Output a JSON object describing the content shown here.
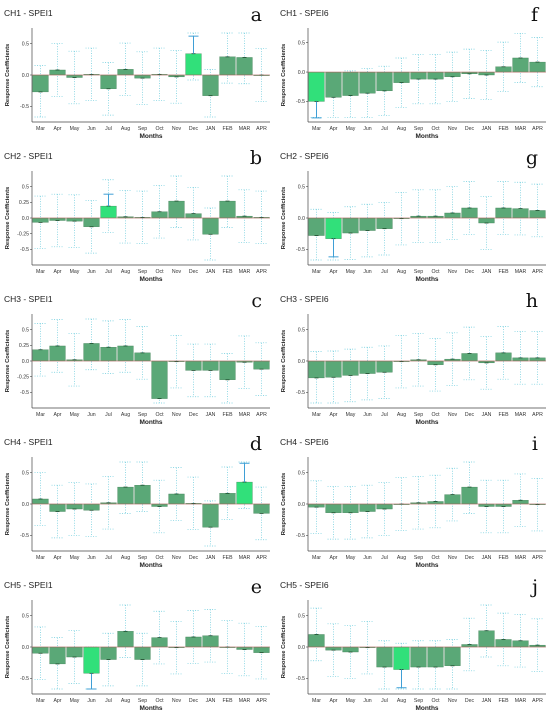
{
  "chart_data": [
    {
      "type": "bar",
      "title": "CH1 - SPEI1",
      "letter": "a",
      "xlabel": "Months",
      "ylabel": "Response Coefficients",
      "categories": [
        "Mar",
        "Apr",
        "May",
        "Jun",
        "Jul",
        "Aug",
        "Sep",
        "Oct",
        "Nov",
        "Dec",
        "JAN",
        "FEB",
        "MAR",
        "APR"
      ],
      "yticks": [
        "0.5",
        "0.0",
        "-0.5"
      ],
      "ylim": [
        -0.75,
        0.75
      ],
      "values": [
        -0.27,
        0.08,
        -0.04,
        0.01,
        -0.22,
        0.09,
        -0.05,
        0.01,
        -0.03,
        0.34,
        -0.33,
        0.29,
        0.28,
        0.0
      ],
      "significant": [
        9
      ],
      "sig_upper": [
        0.62
      ]
    },
    {
      "type": "bar",
      "title": "CH2 - SPEI1",
      "letter": "b",
      "xlabel": "Months",
      "ylabel": "Response Coefficients",
      "categories": [
        "Mar",
        "Apr",
        "May",
        "Jun",
        "Jul",
        "Aug",
        "Sep",
        "Oct",
        "Nov",
        "Dec",
        "JAN",
        "FEB",
        "MAR",
        "APR"
      ],
      "yticks": [
        "0.5",
        "0.25",
        "0.0",
        "-0.25",
        "-0.5"
      ],
      "ylim": [
        -0.75,
        0.75
      ],
      "values": [
        -0.07,
        -0.04,
        -0.05,
        -0.14,
        0.19,
        0.02,
        0.01,
        0.1,
        0.27,
        0.07,
        -0.26,
        0.27,
        0.03,
        0.01
      ],
      "significant": [
        4
      ],
      "sig_upper": [
        0.38
      ]
    },
    {
      "type": "bar",
      "title": "CH3 - SPEI1",
      "letter": "c",
      "xlabel": "Months",
      "ylabel": "Response Coefficients",
      "categories": [
        "Mar",
        "Apr",
        "May",
        "Jun",
        "Jul",
        "Aug",
        "Sep",
        "Oct",
        "Nov",
        "Dec",
        "JAN",
        "FEB",
        "MAR",
        "APR"
      ],
      "yticks": [
        "0.5",
        "0.25",
        "0.0",
        "-0.25",
        "-0.5"
      ],
      "ylim": [
        -0.75,
        0.75
      ],
      "values": [
        0.18,
        0.24,
        0.02,
        0.28,
        0.22,
        0.24,
        0.13,
        -0.6,
        -0.01,
        -0.15,
        -0.15,
        -0.3,
        -0.02,
        -0.13
      ],
      "significant": [],
      "sig_upper": []
    },
    {
      "type": "bar",
      "title": "CH4 - SPEI1",
      "letter": "d",
      "xlabel": "Months",
      "ylabel": "Response Coefficients",
      "categories": [
        "Mar",
        "Apr",
        "May",
        "Jun",
        "Jul",
        "Aug",
        "Sep",
        "Oct",
        "Nov",
        "Dec",
        "JAN",
        "FEB",
        "MAR",
        "APR"
      ],
      "yticks": [
        "0.5",
        "0.0",
        "-0.5"
      ],
      "ylim": [
        -0.75,
        0.75
      ],
      "values": [
        0.08,
        -0.12,
        -0.08,
        -0.1,
        0.02,
        0.27,
        0.3,
        -0.04,
        0.16,
        0.01,
        -0.37,
        0.17,
        0.35,
        -0.15
      ],
      "significant": [
        12
      ],
      "sig_upper": [
        0.65
      ]
    },
    {
      "type": "bar",
      "title": "CH5 - SPEI1",
      "letter": "e",
      "xlabel": "Months",
      "ylabel": "Response Coefficients",
      "categories": [
        "Mar",
        "Apr",
        "May",
        "Jun",
        "Jul",
        "Aug",
        "Sep",
        "Oct",
        "Nov",
        "Dec",
        "JAN",
        "FEB",
        "MAR",
        "APR"
      ],
      "yticks": [
        "0.5",
        "0.0",
        "-0.5"
      ],
      "ylim": [
        -0.75,
        0.75
      ],
      "values": [
        -0.1,
        -0.27,
        -0.16,
        -0.42,
        -0.2,
        0.25,
        -0.2,
        0.15,
        -0.01,
        0.16,
        0.18,
        0.0,
        -0.04,
        -0.09
      ],
      "significant": [
        3
      ],
      "sig_lower": [
        -0.67
      ]
    },
    {
      "type": "bar",
      "title": "CH1 - SPEI6",
      "letter": "f",
      "xlabel": "Months",
      "ylabel": "Response Coefficients",
      "categories": [
        "Mar",
        "Apr",
        "May",
        "Jun",
        "Jul",
        "Aug",
        "Sep",
        "Oct",
        "Nov",
        "Dec",
        "JAN",
        "FEB",
        "MAR",
        "APR"
      ],
      "yticks": [
        "0.5",
        "0.0",
        "-0.5"
      ],
      "ylim": [
        -0.85,
        0.75
      ],
      "values": [
        -0.5,
        -0.43,
        -0.4,
        -0.36,
        -0.32,
        -0.18,
        -0.12,
        -0.12,
        -0.08,
        -0.03,
        -0.05,
        0.09,
        0.24,
        0.17
      ],
      "significant": [
        0
      ],
      "sig_lower": [
        -0.78
      ]
    },
    {
      "type": "bar",
      "title": "CH2 - SPEI6",
      "letter": "g",
      "xlabel": "Months",
      "ylabel": "Response Coefficients",
      "categories": [
        "Mar",
        "Apr",
        "May",
        "Jun",
        "Jul",
        "Aug",
        "Sep",
        "Oct",
        "Nov",
        "Dec",
        "JAN",
        "FEB",
        "MAR",
        "APR"
      ],
      "yticks": [
        "0.5",
        "0.0",
        "-0.5"
      ],
      "ylim": [
        -0.75,
        0.75
      ],
      "values": [
        -0.28,
        -0.33,
        -0.24,
        -0.2,
        -0.17,
        -0.01,
        0.03,
        0.03,
        0.08,
        0.16,
        -0.08,
        0.16,
        0.15,
        0.12
      ],
      "significant": [
        1
      ],
      "sig_lower": [
        -0.62
      ]
    },
    {
      "type": "bar",
      "title": "CH3 - SPEI6",
      "letter": "h",
      "xlabel": "Months",
      "ylabel": "Response Coefficients",
      "categories": [
        "Mar",
        "Apr",
        "May",
        "Jun",
        "Jul",
        "Aug",
        "Sep",
        "Oct",
        "Nov",
        "Dec",
        "JAN",
        "FEB",
        "MAR",
        "APR"
      ],
      "yticks": [
        "0.5",
        "0.0",
        "-0.5"
      ],
      "ylim": [
        -0.75,
        0.75
      ],
      "values": [
        -0.27,
        -0.26,
        -0.23,
        -0.2,
        -0.18,
        -0.01,
        0.02,
        -0.06,
        0.03,
        0.12,
        -0.03,
        0.13,
        0.05,
        0.05
      ],
      "significant": [],
      "sig_upper": []
    },
    {
      "type": "bar",
      "title": "CH4 - SPEI6",
      "letter": "i",
      "xlabel": "Months",
      "ylabel": "Response Coefficients",
      "categories": [
        "Mar",
        "Apr",
        "May",
        "Jun",
        "Jul",
        "Aug",
        "Sep",
        "Oct",
        "Nov",
        "Dec",
        "JAN",
        "FEB",
        "MAR",
        "APR"
      ],
      "yticks": [
        "0.5",
        "0.0",
        "-0.5"
      ],
      "ylim": [
        -0.75,
        0.75
      ],
      "values": [
        -0.05,
        -0.14,
        -0.14,
        -0.12,
        -0.08,
        0.0,
        0.02,
        0.04,
        0.15,
        0.27,
        -0.04,
        -0.04,
        0.06,
        -0.01
      ],
      "significant": [],
      "sig_upper": []
    },
    {
      "type": "bar",
      "title": "CH5 - SPEI6",
      "letter": "j",
      "xlabel": "Months",
      "ylabel": "Response Coefficients",
      "categories": [
        "Mar",
        "Apr",
        "May",
        "Jun",
        "Jul",
        "Aug",
        "Sep",
        "Oct",
        "Nov",
        "Dec",
        "JAN",
        "FEB",
        "MAR",
        "APR"
      ],
      "yticks": [
        "0.5",
        "0.0",
        "-0.5"
      ],
      "ylim": [
        -0.75,
        0.75
      ],
      "values": [
        0.2,
        -0.05,
        -0.08,
        -0.01,
        -0.32,
        -0.36,
        -0.32,
        -0.32,
        -0.3,
        0.04,
        0.26,
        0.12,
        0.1,
        0.03
      ],
      "significant": [
        5
      ],
      "sig_lower": [
        -0.65
      ]
    }
  ],
  "colors": {
    "bar_fill": "#5aa877",
    "bar_fill_significant": "#31e07a",
    "bar_stroke": "#2f6f45",
    "ci_dotted": "#66cadb",
    "sig_whisker": "#3f9fd6",
    "zero_line": "#c95a5a"
  }
}
